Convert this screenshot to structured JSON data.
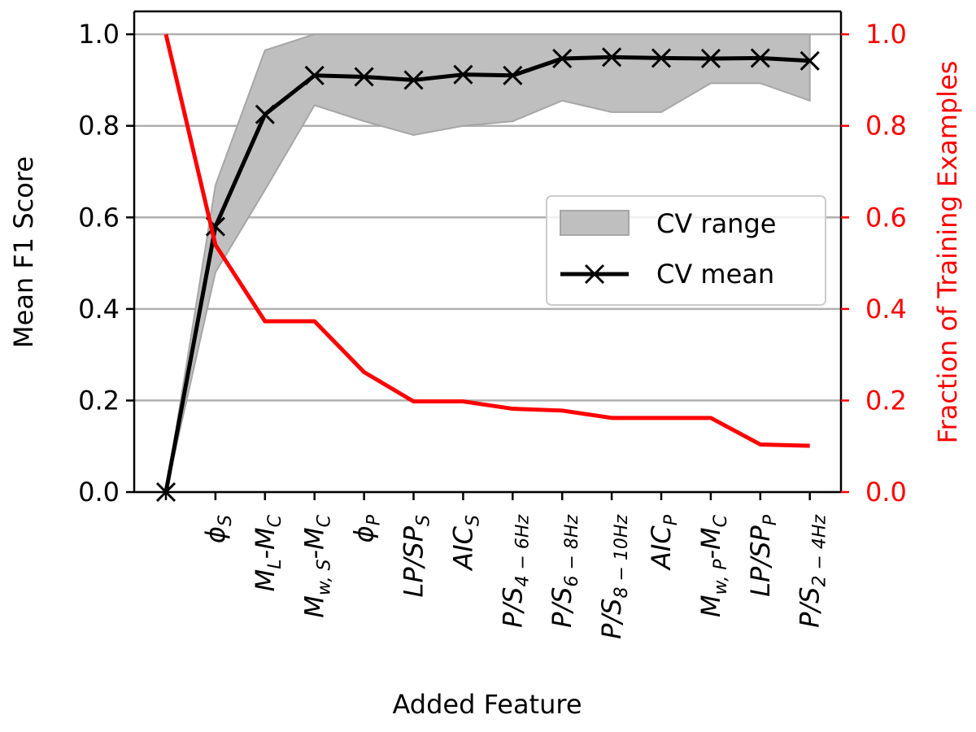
{
  "chart_data": {
    "type": "line",
    "xlabel": "Added Feature",
    "ylabel": "Mean F1 Score",
    "y2label": "Fraction of Training Examples",
    "ylim": [
      0,
      1.05
    ],
    "y2lim": [
      0,
      1.05
    ],
    "yticks": [
      0.0,
      0.2,
      0.4,
      0.6,
      0.8,
      1.0
    ],
    "y2ticks": [
      0.0,
      0.2,
      0.4,
      0.6,
      0.8,
      1.0
    ],
    "ytick_labels": [
      "0.0",
      "0.2",
      "0.4",
      "0.6",
      "0.8",
      "1.0"
    ],
    "y2tick_labels": [
      "0.0",
      "0.2",
      "0.4",
      "0.6",
      "0.8",
      "1.0"
    ],
    "grid": "y-major",
    "legend_position": "center-right",
    "categories": [
      {
        "label": "",
        "base": "",
        "sub": ""
      },
      {
        "label": "ϕS",
        "base": "ϕ",
        "sub": "S"
      },
      {
        "label": "ML-MC",
        "base": "M",
        "sub": "L",
        "rest": "-M",
        "sub2": "C"
      },
      {
        "label": "Mw,S-MC",
        "base": "M",
        "sub": "w, S",
        "rest": "-M",
        "sub2": "C"
      },
      {
        "label": "ϕP",
        "base": "ϕ",
        "sub": "P"
      },
      {
        "label": "LP/SPS",
        "base": "LP/SP",
        "sub": "S"
      },
      {
        "label": "AICS",
        "base": "AIC",
        "sub": "S"
      },
      {
        "label": "P/S4−6Hz",
        "base": "P/S",
        "sub": "4 − 6Hz"
      },
      {
        "label": "P/S6−8Hz",
        "base": "P/S",
        "sub": "6 − 8Hz"
      },
      {
        "label": "P/S8−10Hz",
        "base": "P/S",
        "sub": "8 − 10Hz"
      },
      {
        "label": "AICP",
        "base": "AIC",
        "sub": "P"
      },
      {
        "label": "Mw,P-MC",
        "base": "M",
        "sub": "w, P",
        "rest": "-M",
        "sub2": "C"
      },
      {
        "label": "LP/SPP",
        "base": "LP/SP",
        "sub": "P"
      },
      {
        "label": "P/S2−4Hz",
        "base": "P/S",
        "sub": "2 − 4Hz"
      }
    ],
    "series": [
      {
        "name": "CV range",
        "kind": "band",
        "lower": [
          0.0,
          0.48,
          0.66,
          0.845,
          0.81,
          0.78,
          0.8,
          0.81,
          0.855,
          0.83,
          0.83,
          0.893,
          0.893,
          0.855
        ],
        "upper": [
          0.0,
          0.67,
          0.965,
          1.0,
          1.0,
          1.0,
          1.0,
          1.0,
          1.0,
          1.0,
          1.0,
          1.0,
          1.0,
          1.0
        ],
        "color": "#bfbfbf",
        "edge_color": "#a6a6a6"
      },
      {
        "name": "CV mean",
        "kind": "line",
        "marker": "x",
        "values": [
          0.0,
          0.58,
          0.825,
          0.91,
          0.907,
          0.9,
          0.912,
          0.91,
          0.947,
          0.95,
          0.948,
          0.947,
          0.948,
          0.942
        ],
        "color": "#000000"
      },
      {
        "name": "",
        "kind": "line",
        "axis": "right",
        "values": [
          1.0,
          0.54,
          0.373,
          0.373,
          0.262,
          0.198,
          0.198,
          0.182,
          0.178,
          0.162,
          0.162,
          0.162,
          0.104,
          0.101
        ],
        "color": "#ff0000"
      }
    ]
  },
  "colors": {
    "axis": "#000000",
    "right_axis": "#ff0000",
    "grid": "#b0b0b0",
    "legend_border": "#cccccc"
  }
}
